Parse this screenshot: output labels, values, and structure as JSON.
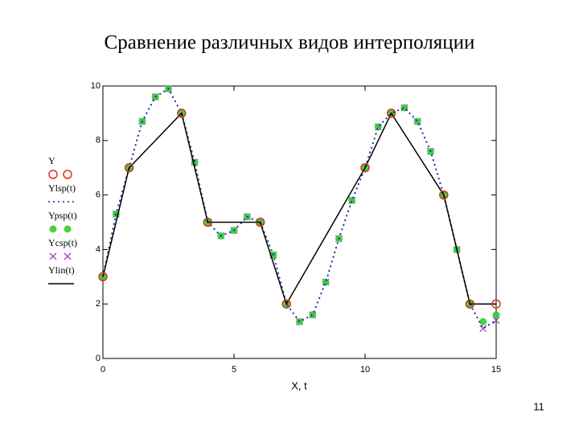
{
  "title": "Сравнение различных видов интерполяции",
  "slide_number": "11",
  "chart_data": {
    "type": "line",
    "xlabel": "X, t",
    "xlim": [
      0,
      15
    ],
    "ylim": [
      0,
      10
    ],
    "xticks": [
      0,
      5,
      10,
      15
    ],
    "yticks": [
      0,
      2,
      4,
      6,
      8,
      10
    ],
    "series": [
      {
        "name": "Y",
        "color": "#e03020",
        "line": "none",
        "marker": "circle",
        "x": [
          0,
          1,
          3,
          4,
          6,
          7,
          10,
          11,
          13,
          14,
          15
        ],
        "values": [
          3,
          7,
          9,
          5,
          5,
          2,
          7,
          9,
          6,
          2,
          2
        ]
      },
      {
        "name": "Ylsp(t)",
        "color": "#1030a0",
        "line": "dotted",
        "marker": "none",
        "x": [
          0,
          0.5,
          1,
          1.5,
          2,
          2.5,
          3,
          3.5,
          4,
          4.5,
          5,
          5.5,
          6,
          6.5,
          7,
          7.5,
          8,
          8.5,
          9,
          9.5,
          10,
          10.5,
          11,
          11.5,
          12,
          12.5,
          13,
          13.5,
          14,
          14.5,
          15
        ],
        "values": [
          3,
          5.3,
          7,
          8.7,
          9.6,
          9.9,
          9,
          7.2,
          5,
          4.5,
          4.7,
          5.2,
          5,
          3.8,
          2,
          1.35,
          1.6,
          2.8,
          4.4,
          5.8,
          7,
          8.5,
          9,
          9.2,
          8.7,
          7.6,
          6,
          4,
          2,
          1.1,
          1.4
        ]
      },
      {
        "name": "Ypsp(t)",
        "color": "#33cc33",
        "line": "none",
        "marker": "dot",
        "x": [
          0,
          0.5,
          1,
          1.5,
          2,
          2.5,
          3,
          3.5,
          4,
          4.5,
          5,
          5.5,
          6,
          6.5,
          7,
          7.5,
          8,
          8.5,
          9,
          9.5,
          10,
          10.5,
          11,
          11.5,
          12,
          12.5,
          13,
          13.5,
          14,
          14.5,
          15
        ],
        "values": [
          3,
          5.3,
          7,
          8.7,
          9.6,
          9.9,
          9,
          7.2,
          5,
          4.5,
          4.7,
          5.2,
          5,
          3.8,
          2,
          1.35,
          1.6,
          2.8,
          4.4,
          5.8,
          7,
          8.5,
          9,
          9.2,
          8.7,
          7.6,
          6,
          4,
          2,
          1.35,
          1.6
        ]
      },
      {
        "name": "Ycsp(t)",
        "color": "#a040c0",
        "line": "none",
        "marker": "x",
        "x": [
          0,
          0.5,
          1,
          1.5,
          2,
          2.5,
          3,
          3.5,
          4,
          4.5,
          5,
          5.5,
          6,
          6.5,
          7,
          7.5,
          8,
          8.5,
          9,
          9.5,
          10,
          10.5,
          11,
          11.5,
          12,
          12.5,
          13,
          13.5,
          14,
          14.5,
          15
        ],
        "values": [
          3,
          5.3,
          7,
          8.7,
          9.6,
          9.9,
          9,
          7.2,
          5,
          4.5,
          4.7,
          5.2,
          5,
          3.8,
          2,
          1.35,
          1.6,
          2.8,
          4.4,
          5.8,
          7,
          8.5,
          9,
          9.2,
          8.7,
          7.6,
          6,
          4,
          2,
          1.1,
          1.4
        ]
      },
      {
        "name": "Ylin(t)",
        "color": "#000000",
        "line": "solid",
        "marker": "none",
        "x": [
          0,
          1,
          3,
          4,
          6,
          7,
          10,
          11,
          13,
          14,
          15
        ],
        "values": [
          3,
          7,
          9,
          5,
          5,
          2,
          7,
          9,
          6,
          2,
          2
        ]
      }
    ]
  }
}
